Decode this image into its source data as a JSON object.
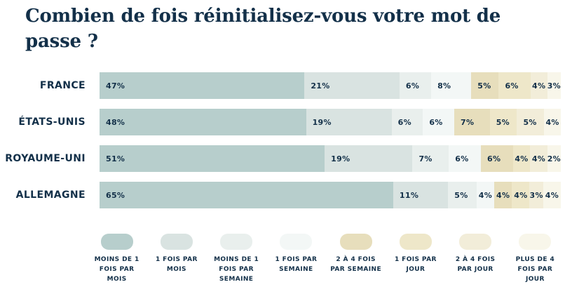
{
  "page": {
    "background_color": "#ffffff",
    "text_color": "#133049"
  },
  "chart_data": {
    "type": "bar",
    "stacked": true,
    "orientation": "horizontal",
    "title": "Combien de fois réinitialisez-vous votre mot de passe ?",
    "categories": [
      "FRANCE",
      "ÉTATS-UNIS",
      "ROYAUME-UNI",
      "ALLEMAGNE"
    ],
    "series": [
      {
        "name": "MOINS DE 1 FOIS PAR MOIS",
        "color": "#b7cecc",
        "values": [
          47,
          48,
          51,
          65
        ]
      },
      {
        "name": "1 FOIS PAR MOIS",
        "color": "#d9e3e1",
        "values": [
          21,
          19,
          19,
          11
        ]
      },
      {
        "name": "MOINS DE 1 FOIS PAR SEMAINE",
        "color": "#e9efed",
        "values": [
          6,
          6,
          7,
          5
        ]
      },
      {
        "name": "1 FOIS PAR SEMAINE",
        "color": "#f3f7f6",
        "values": [
          8,
          6,
          6,
          4
        ]
      },
      {
        "name": "2 À 4 FOIS PAR SEMAINE",
        "color": "#e7debc",
        "values": [
          5,
          7,
          6,
          4
        ]
      },
      {
        "name": "1 FOIS PAR JOUR",
        "color": "#eee7c9",
        "values": [
          6,
          5,
          4,
          4
        ]
      },
      {
        "name": "2 À 4 FOIS PAR JOUR",
        "color": "#f2edd9",
        "values": [
          4,
          5,
          4,
          3
        ]
      },
      {
        "name": "PLUS DE 4 FOIS PAR JOUR",
        "color": "#f8f6ea",
        "values": [
          3,
          4,
          2,
          4
        ]
      }
    ],
    "value_format": "percent",
    "value_suffix": "%",
    "legend_position": "bottom",
    "grid": false,
    "axes_visible": false
  }
}
